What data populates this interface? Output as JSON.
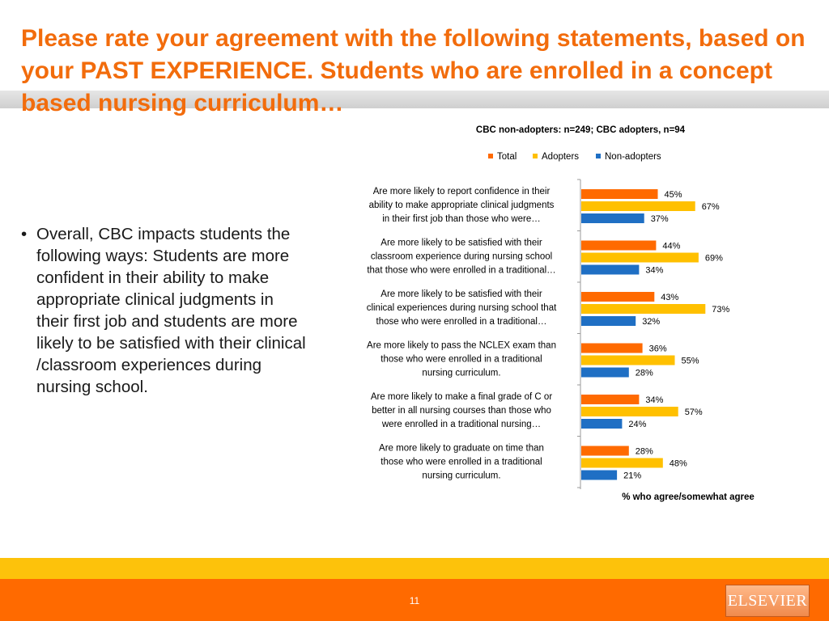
{
  "slide": {
    "title": "Please rate your agreement with the following statements, based on your PAST EXPERIENCE. Students who are enrolled in a concept based nursing curriculum…",
    "bullets": [
      "Overall, CBC impacts students the following ways: Students are more confident in their ability to make appropriate clinical judgments in their first job and students are more likely to be satisfied with their clinical /classroom experiences during nursing school."
    ],
    "page_number": "11",
    "logo_text": "ELSEVIER"
  },
  "colors": {
    "title": "#f26c0c",
    "footer_yellow": "#fdc20b",
    "footer_orange": "#ff6a00"
  },
  "chart_data": {
    "type": "bar",
    "orientation": "horizontal",
    "subtitle": "CBC non-adopters: n=249; CBC adopters, n=94",
    "xlabel": "% who agree/somewhat agree",
    "legend_position": "top",
    "value_format": "percent",
    "xlim": [
      0,
      100
    ],
    "grid": false,
    "categories": [
      [
        "Are more likely to report confidence in their",
        "ability to make appropriate clinical judgments",
        "in their first job than those who were…"
      ],
      [
        "Are more likely to be satisfied with their",
        "classroom experience during nursing school",
        "that those who were enrolled in a traditional…"
      ],
      [
        "Are more likely to be satisfied with their",
        "clinical experiences during nursing school that",
        "those who were enrolled in a traditional…"
      ],
      [
        "Are more likely to pass the NCLEX exam than",
        "those who were enrolled in a traditional",
        "nursing curriculum."
      ],
      [
        "Are more likely to make a final grade of C or",
        "better in all nursing courses than those who",
        "were enrolled in a traditional nursing…"
      ],
      [
        "Are more likely to graduate on time than",
        "those who were enrolled in a traditional",
        "nursing curriculum."
      ]
    ],
    "series": [
      {
        "name": "Total",
        "color": "#ff6a00",
        "values": [
          45,
          44,
          43,
          36,
          34,
          28
        ]
      },
      {
        "name": "Adopters",
        "color": "#ffc000",
        "values": [
          67,
          69,
          73,
          55,
          57,
          48
        ]
      },
      {
        "name": "Non-adopters",
        "color": "#1f6fc4",
        "values": [
          37,
          34,
          32,
          28,
          24,
          21
        ]
      }
    ]
  }
}
